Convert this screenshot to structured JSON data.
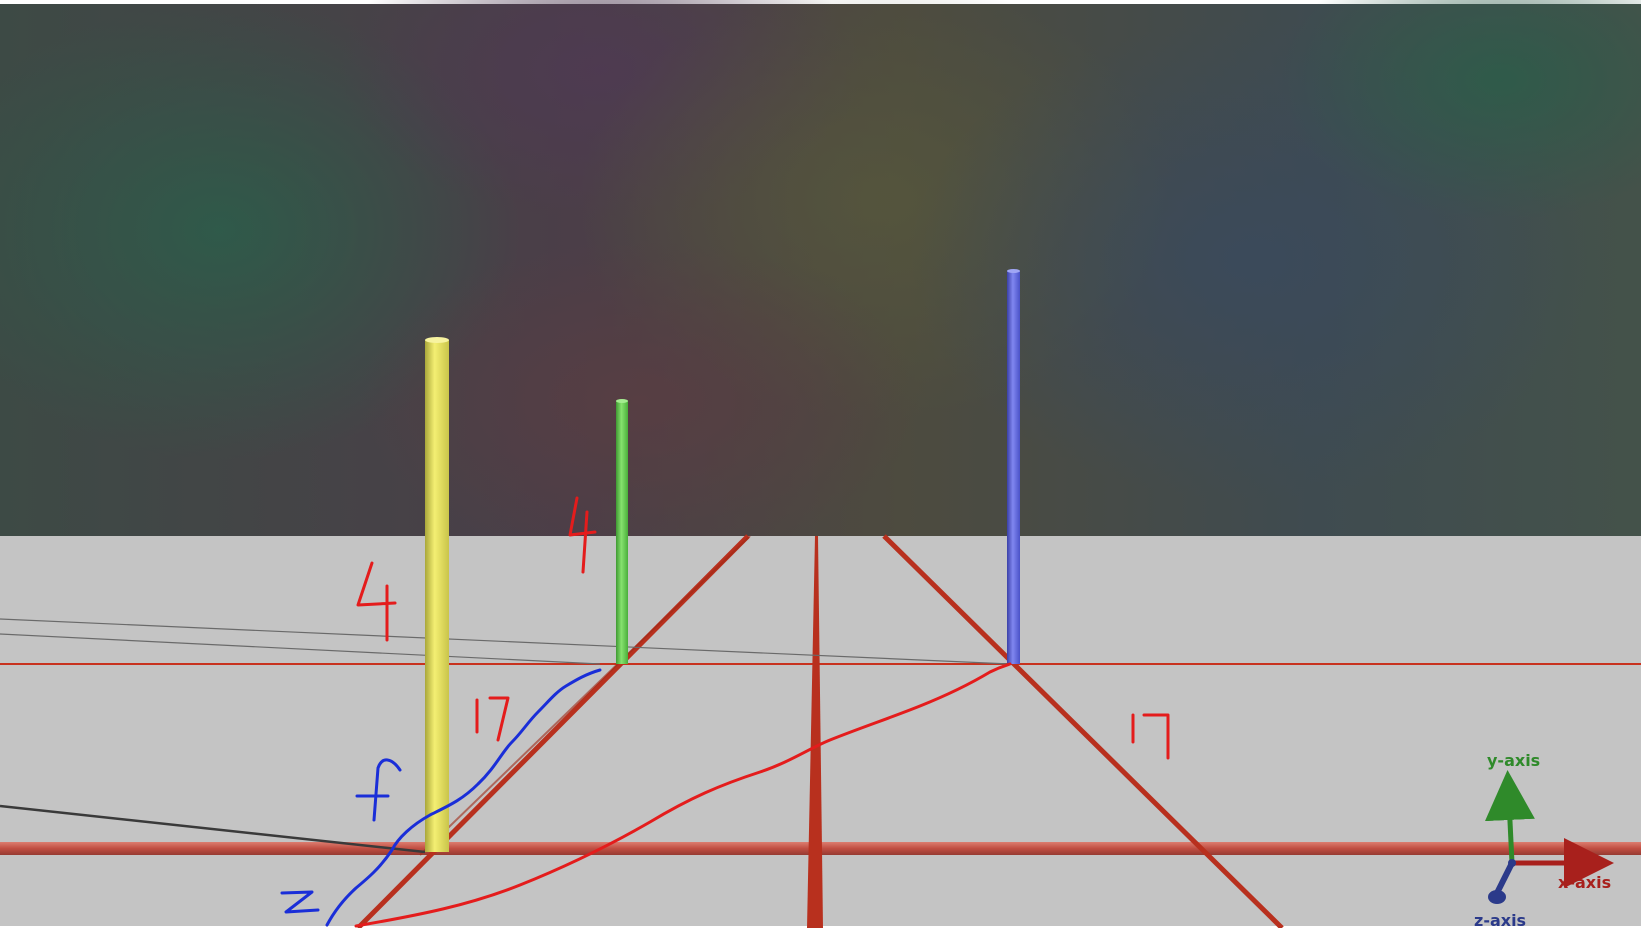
{
  "scene": {
    "title": "3D poles on a grid plane with hand-drawn annotations",
    "colors": {
      "ground": "#c4c4c4",
      "grid_line": "#c8321e",
      "pole_yellow": "#e8e35a",
      "pole_green": "#5fcf4a",
      "pole_blue": "#5a62d8",
      "ink_red": "#e41c1c",
      "ink_blue": "#1a2ed8",
      "axis_x": "#a8201c",
      "axis_y": "#2f8a2a",
      "axis_z": "#2b3a8a"
    }
  },
  "annotations": {
    "yellow_pole_height": "4",
    "green_pole_height": "4",
    "left_distance": "17",
    "right_distance": "17",
    "blue_f": "f",
    "blue_z": "z"
  },
  "axes": {
    "x_label": "x-axis",
    "y_label": "y-axis",
    "z_label": "z-axis"
  }
}
